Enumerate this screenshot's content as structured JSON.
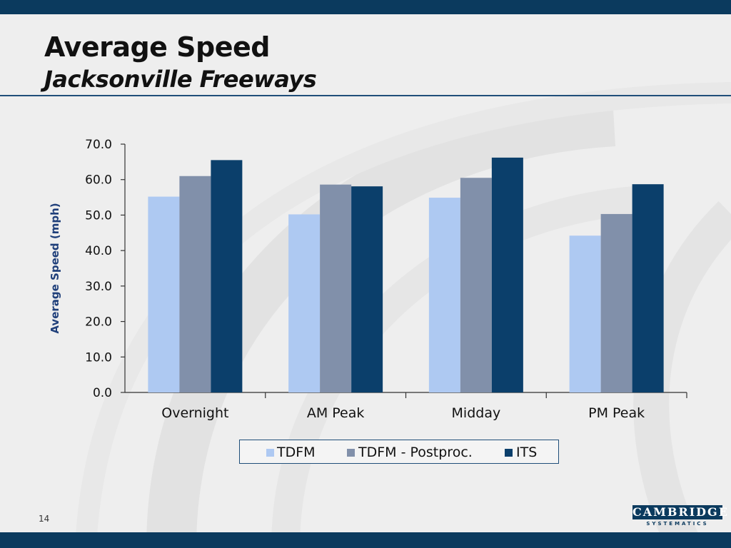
{
  "slide": {
    "title": "Average Speed",
    "subtitle": "Jacksonville Freeways",
    "page_number": "14",
    "logo_main": "CAMBRIDGE",
    "logo_sub": "SYSTEMATICS"
  },
  "colors": {
    "topbar": "#0b3a5e",
    "rule": "#1f4e79",
    "axis_label": "#1f3f7a"
  },
  "chart_data": {
    "type": "bar",
    "title": "",
    "xlabel": "",
    "ylabel": "Average Speed (mph)",
    "ylim": [
      0,
      70
    ],
    "yticks": [
      0,
      10,
      20,
      30,
      40,
      50,
      60,
      70
    ],
    "ytick_labels": [
      "0.0",
      "10.0",
      "20.0",
      "30.0",
      "40.0",
      "50.0",
      "60.0",
      "70.0"
    ],
    "categories": [
      "Overnight",
      "AM Peak",
      "Midday",
      "PM Peak"
    ],
    "series": [
      {
        "name": "TDFM",
        "color": "#aec9f2",
        "values": [
          55.2,
          50.2,
          54.9,
          44.2
        ]
      },
      {
        "name": "TDFM - Postproc.",
        "color": "#8190aa",
        "values": [
          61.0,
          58.6,
          60.5,
          50.3
        ]
      },
      {
        "name": "ITS",
        "color": "#0b3f6b",
        "values": [
          65.5,
          58.1,
          66.2,
          58.7
        ]
      }
    ],
    "legend_position": "bottom",
    "grid": false
  }
}
